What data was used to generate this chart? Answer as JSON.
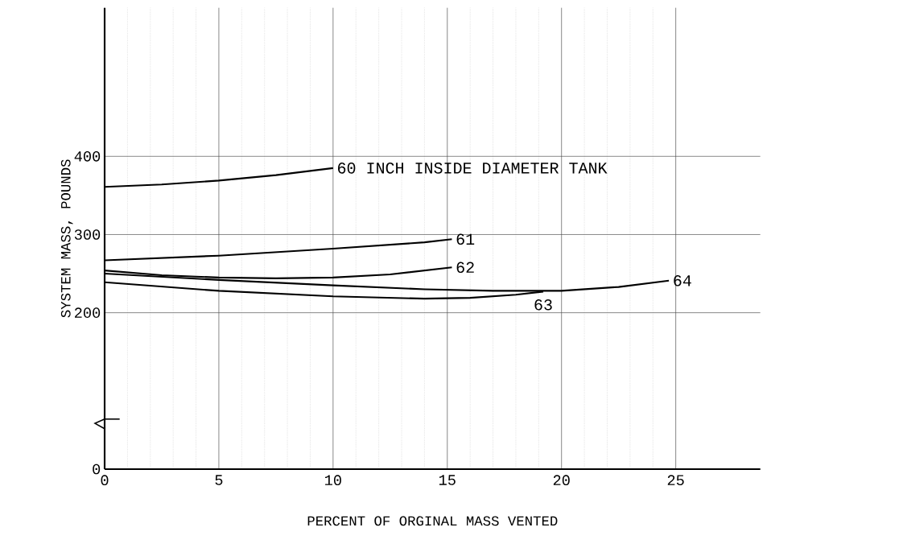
{
  "chart_data": {
    "type": "line",
    "xlabel": "PERCENT OF ORGINAL MASS VENTED",
    "ylabel": "SYSTEM MASS, POUNDS",
    "xlim": [
      0,
      28.7
    ],
    "ylim": [
      0,
      590
    ],
    "xticks": [
      0,
      5,
      10,
      15,
      20,
      25
    ],
    "yticks": [
      0,
      200,
      300,
      400
    ],
    "grid": true,
    "legend": false,
    "marker": "none",
    "line_style": "solid",
    "series": [
      {
        "name": "60 INCH INSIDE DIAMETER TANK",
        "color": "#000000",
        "x": [
          0,
          2.5,
          5,
          7.5,
          10
        ],
        "values": [
          361,
          364,
          369,
          376,
          385
        ]
      },
      {
        "name": "61",
        "color": "#000000",
        "x": [
          0,
          5,
          10,
          14,
          15.2
        ],
        "values": [
          267,
          273,
          282,
          290,
          294
        ]
      },
      {
        "name": "62",
        "color": "#000000",
        "x": [
          0,
          2.5,
          5,
          7.5,
          10,
          12.5,
          15.2
        ],
        "values": [
          254,
          248,
          245,
          244,
          245,
          249,
          258
        ]
      },
      {
        "name": "63",
        "color": "#000000",
        "x": [
          0,
          5,
          10,
          14,
          16,
          18,
          19.2
        ],
        "values": [
          239,
          228,
          221,
          218,
          219,
          223,
          227
        ]
      },
      {
        "name": "64",
        "color": "#000000",
        "x": [
          0,
          5,
          10,
          14,
          17,
          20,
          22.5,
          24.7
        ],
        "values": [
          250,
          242,
          235,
          230,
          228,
          228,
          233,
          241
        ]
      }
    ]
  }
}
